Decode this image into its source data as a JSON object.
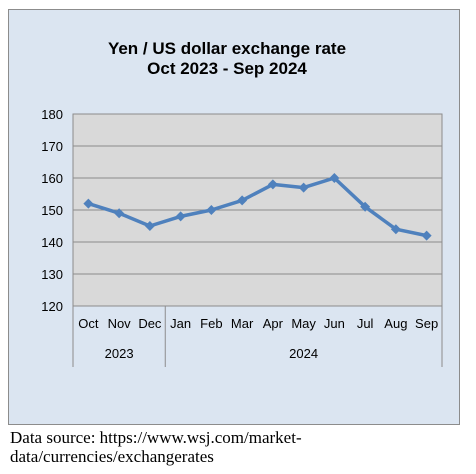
{
  "chart_data": {
    "type": "line",
    "title_lines": [
      "Yen / US dollar exchange rate",
      "Oct 2023 - Sep 2024"
    ],
    "categories": [
      "Oct",
      "Nov",
      "Dec",
      "Jan",
      "Feb",
      "Mar",
      "Apr",
      "May",
      "Jun",
      "Jul",
      "Aug",
      "Sep"
    ],
    "year_groups": [
      {
        "label": "2023",
        "count": 3
      },
      {
        "label": "2024",
        "count": 9
      }
    ],
    "series": [
      {
        "values": [
          152,
          149,
          145,
          148,
          150,
          153,
          158,
          157,
          160,
          151,
          144,
          142
        ]
      }
    ],
    "ylim": [
      120,
      180
    ],
    "yticks": [
      "120",
      "130",
      "140",
      "150",
      "160",
      "170",
      "180"
    ],
    "grid": true,
    "line_color": "#4f81bd",
    "plot_background": "#d9d9d9",
    "chart_background": "#dbe5f1"
  },
  "source_lines": [
    "Data source: https://www.wsj.com/market-",
    "data/currencies/exchangerates"
  ]
}
